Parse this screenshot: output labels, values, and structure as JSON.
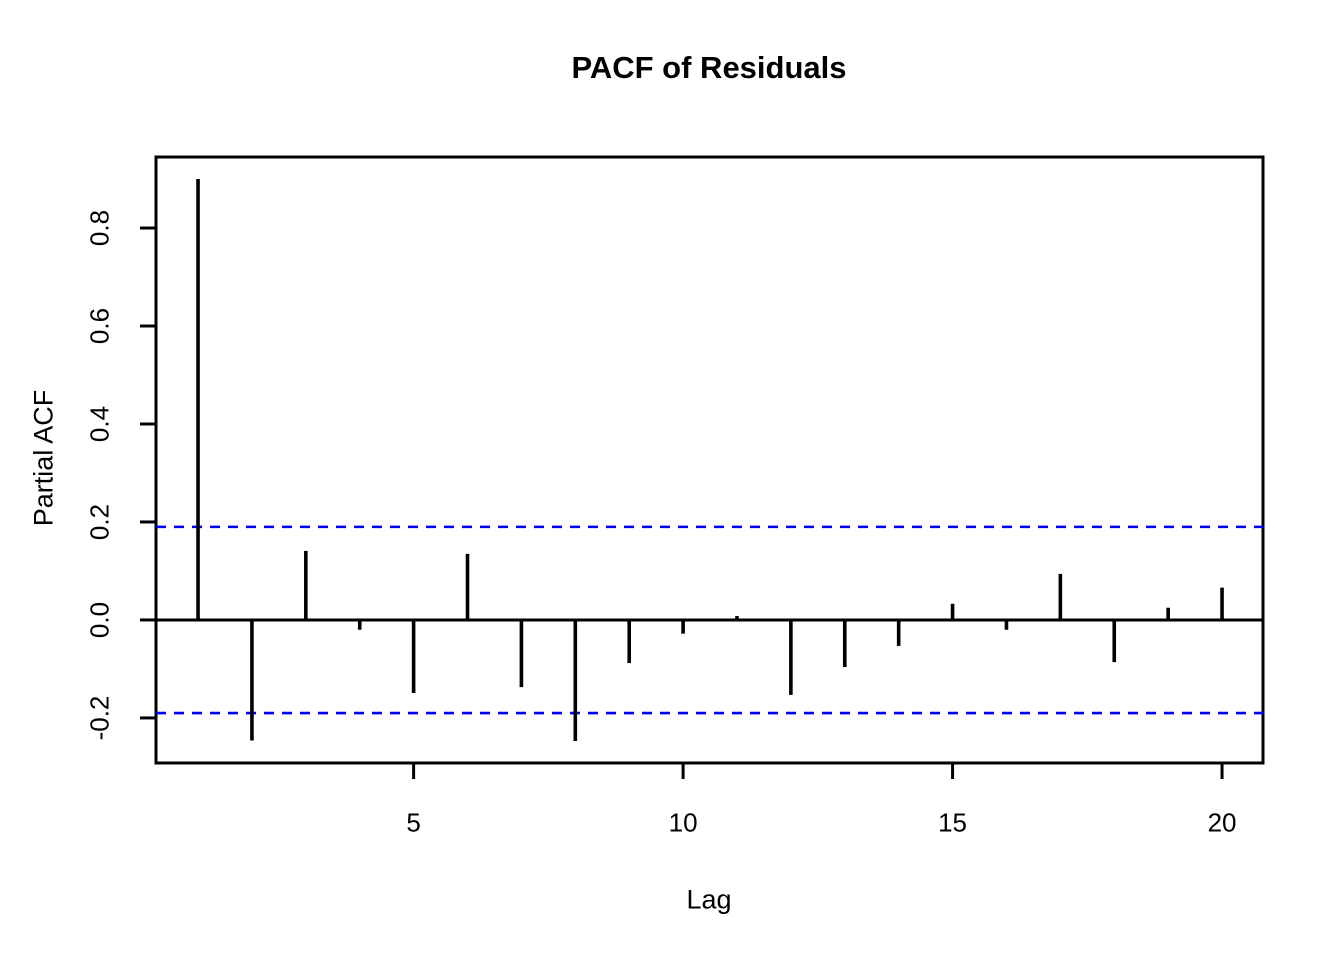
{
  "title": "PACF of Residuals",
  "chart_data": {
    "type": "bar",
    "title": "PACF of Residuals",
    "xlabel": "Lag",
    "ylabel": "Partial ACF",
    "x": [
      1,
      2,
      3,
      4,
      5,
      6,
      7,
      8,
      9,
      10,
      11,
      12,
      13,
      14,
      15,
      16,
      17,
      18,
      19,
      20
    ],
    "values": [
      0.9,
      -0.246,
      0.141,
      -0.02,
      -0.149,
      0.135,
      -0.137,
      -0.247,
      -0.088,
      -0.028,
      0.008,
      -0.153,
      -0.096,
      -0.053,
      0.033,
      -0.02,
      0.094,
      -0.086,
      0.025,
      0.066
    ],
    "conf_upper": 0.19,
    "conf_lower": -0.19,
    "xlim": [
      0.22,
      20.76
    ],
    "ylim": [
      -0.292,
      0.945
    ],
    "xticks": [
      5,
      10,
      15,
      20
    ],
    "xtick_labels": [
      "5",
      "10",
      "15",
      "20"
    ],
    "yticks": [
      -0.2,
      0.0,
      0.2,
      0.4,
      0.6,
      0.8
    ],
    "ytick_labels": [
      "-0.2",
      "0.0",
      "0.2",
      "0.4",
      "0.6",
      "0.8"
    ],
    "grid": false,
    "legend": null,
    "colors": {
      "spike": "#000000",
      "axis": "#000000",
      "conf_line": "#0000ff",
      "text": "#000000",
      "background": "#ffffff"
    }
  }
}
